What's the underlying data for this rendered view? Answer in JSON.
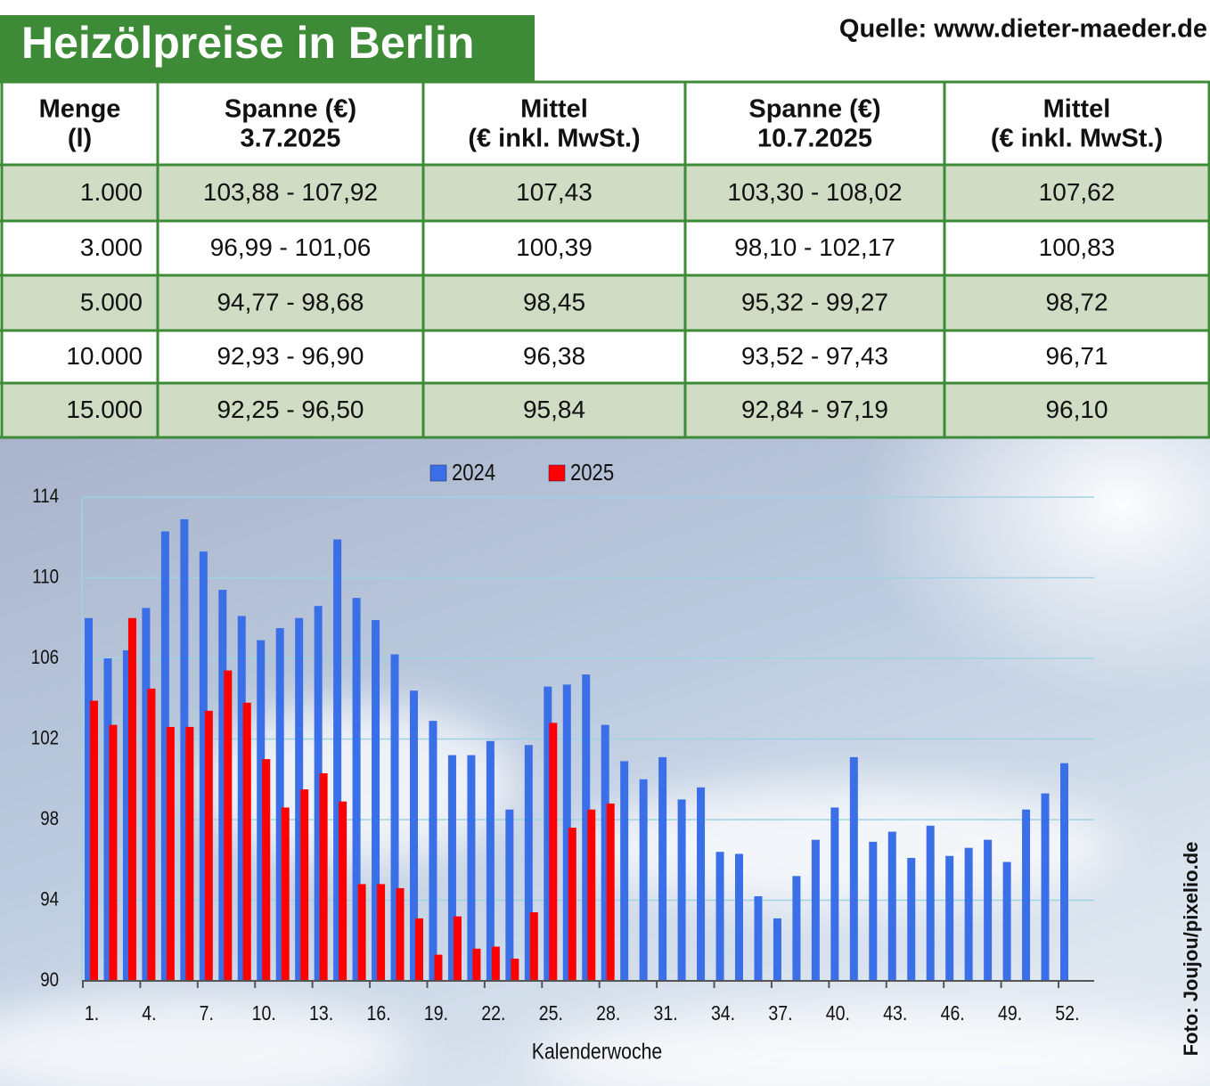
{
  "header": {
    "title": "Heizölpreise in Berlin",
    "source": "Quelle: www.dieter-maeder.de",
    "photo_credit": "Foto: Joujou/pixelio.de"
  },
  "table": {
    "columns": [
      [
        "Menge",
        "(l)"
      ],
      [
        "Spanne (€)",
        "3.7.2025"
      ],
      [
        "Mittel",
        "(€ inkl. MwSt.)"
      ],
      [
        "Spanne (€)",
        "10.7.2025"
      ],
      [
        "Mittel",
        "(€ inkl. MwSt.)"
      ]
    ],
    "rows": [
      [
        "1.000",
        "103,88 - 107,92",
        "107,43",
        "103,30 - 108,02",
        "107,62"
      ],
      [
        "3.000",
        "96,99 - 101,06",
        "100,39",
        "98,10 - 102,17",
        "100,83"
      ],
      [
        "5.000",
        "94,77 - 98,68",
        "98,45",
        "95,32 - 99,27",
        "98,72"
      ],
      [
        "10.000",
        "92,93 - 96,90",
        "96,38",
        "93,52 - 97,43",
        "96,71"
      ],
      [
        "15.000",
        "92,25 - 96,50",
        "95,84",
        "92,84 - 97,19",
        "96,10"
      ]
    ]
  },
  "chart_data": {
    "type": "bar",
    "x_label": "Kalenderwoche",
    "categories": [
      "1.",
      null,
      null,
      "4.",
      null,
      null,
      "7.",
      null,
      null,
      "10.",
      null,
      null,
      "13.",
      null,
      null,
      "16.",
      null,
      null,
      "19.",
      null,
      null,
      "22.",
      null,
      null,
      "25.",
      null,
      null,
      "28.",
      null,
      null,
      "31.",
      null,
      null,
      "34.",
      null,
      null,
      "37.",
      null,
      null,
      "40.",
      null,
      null,
      "43.",
      null,
      null,
      "46.",
      null,
      null,
      "49.",
      null,
      null,
      "52."
    ],
    "series": [
      {
        "name": "2024",
        "color": "#3a6fe8",
        "values": [
          108.0,
          106.0,
          106.4,
          108.5,
          112.3,
          112.9,
          111.3,
          109.4,
          108.1,
          106.9,
          107.5,
          108.0,
          108.6,
          111.9,
          109.0,
          107.9,
          106.2,
          104.4,
          102.9,
          101.2,
          101.2,
          101.9,
          98.5,
          101.7,
          104.6,
          104.7,
          105.2,
          102.7,
          100.9,
          100.0,
          101.1,
          99.0,
          99.6,
          96.4,
          96.3,
          94.2,
          93.1,
          95.2,
          97.0,
          98.6,
          101.1,
          96.9,
          97.4,
          96.1,
          97.7,
          96.2,
          96.6,
          97.0,
          95.9,
          98.5,
          99.3,
          100.8
        ]
      },
      {
        "name": "2025",
        "color": "#ff0000",
        "values": [
          103.9,
          102.7,
          108.0,
          104.5,
          102.6,
          102.6,
          103.4,
          105.4,
          103.8,
          101.0,
          98.6,
          99.5,
          100.3,
          98.9,
          94.8,
          94.8,
          94.6,
          93.1,
          91.3,
          93.2,
          91.6,
          91.7,
          91.1,
          93.4,
          102.8,
          97.6,
          98.5,
          98.8,
          null,
          null,
          null,
          null,
          null,
          null,
          null,
          null,
          null,
          null,
          null,
          null,
          null,
          null,
          null,
          null,
          null,
          null,
          null,
          null,
          null,
          null,
          null,
          null
        ]
      }
    ],
    "ylim": [
      90,
      114
    ],
    "yticks": [
      90,
      94,
      98,
      102,
      106,
      110,
      114
    ],
    "grid": true
  }
}
